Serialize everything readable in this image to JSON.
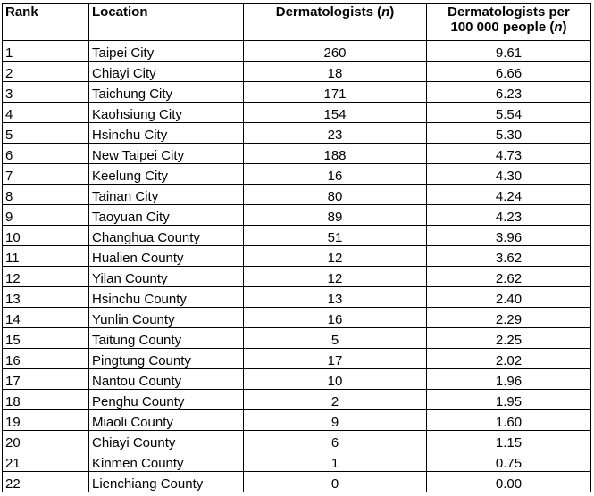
{
  "table": {
    "headers": {
      "rank": "Rank",
      "location": "Location",
      "dermatologists_text": "Dermatologists (",
      "dermatologists_n": "n",
      "dermatologists_close": ")",
      "per_line1": "Dermatologists per",
      "per_line2_text": "100 000 people (",
      "per_line2_n": "n",
      "per_line2_close": ")"
    },
    "rows": [
      {
        "rank": "1",
        "location": "Taipei City",
        "dermatologists": "260",
        "per_100000": "9.61"
      },
      {
        "rank": "2",
        "location": "Chiayi City",
        "dermatologists": "18",
        "per_100000": "6.66"
      },
      {
        "rank": "3",
        "location": "Taichung City",
        "dermatologists": "171",
        "per_100000": "6.23"
      },
      {
        "rank": "4",
        "location": "Kaohsiung City",
        "dermatologists": "154",
        "per_100000": "5.54"
      },
      {
        "rank": "5",
        "location": "Hsinchu City",
        "dermatologists": "23",
        "per_100000": "5.30"
      },
      {
        "rank": "6",
        "location": "New Taipei City",
        "dermatologists": "188",
        "per_100000": "4.73"
      },
      {
        "rank": "7",
        "location": "Keelung City",
        "dermatologists": "16",
        "per_100000": "4.30"
      },
      {
        "rank": "8",
        "location": "Tainan City",
        "dermatologists": "80",
        "per_100000": "4.24"
      },
      {
        "rank": "9",
        "location": "Taoyuan City",
        "dermatologists": "89",
        "per_100000": "4.23"
      },
      {
        "rank": "10",
        "location": "Changhua County",
        "dermatologists": "51",
        "per_100000": "3.96"
      },
      {
        "rank": "11",
        "location": "Hualien County",
        "dermatologists": "12",
        "per_100000": "3.62"
      },
      {
        "rank": "12",
        "location": "Yilan County",
        "dermatologists": "12",
        "per_100000": "2.62"
      },
      {
        "rank": "13",
        "location": "Hsinchu County",
        "dermatologists": "13",
        "per_100000": "2.40"
      },
      {
        "rank": "14",
        "location": "Yunlin County",
        "dermatologists": "16",
        "per_100000": "2.29"
      },
      {
        "rank": "15",
        "location": "Taitung County",
        "dermatologists": "5",
        "per_100000": "2.25"
      },
      {
        "rank": "16",
        "location": "Pingtung County",
        "dermatologists": "17",
        "per_100000": "2.02"
      },
      {
        "rank": "17",
        "location": "Nantou County",
        "dermatologists": "10",
        "per_100000": "1.96"
      },
      {
        "rank": "18",
        "location": "Penghu County",
        "dermatologists": "2",
        "per_100000": "1.95"
      },
      {
        "rank": "19",
        "location": "Miaoli County",
        "dermatologists": "9",
        "per_100000": "1.60"
      },
      {
        "rank": "20",
        "location": "Chiayi County",
        "dermatologists": "6",
        "per_100000": "1.15"
      },
      {
        "rank": "21",
        "location": "Kinmen County",
        "dermatologists": "1",
        "per_100000": "0.75"
      },
      {
        "rank": "22",
        "location": "Lienchiang County",
        "dermatologists": "0",
        "per_100000": "0.00"
      }
    ]
  }
}
